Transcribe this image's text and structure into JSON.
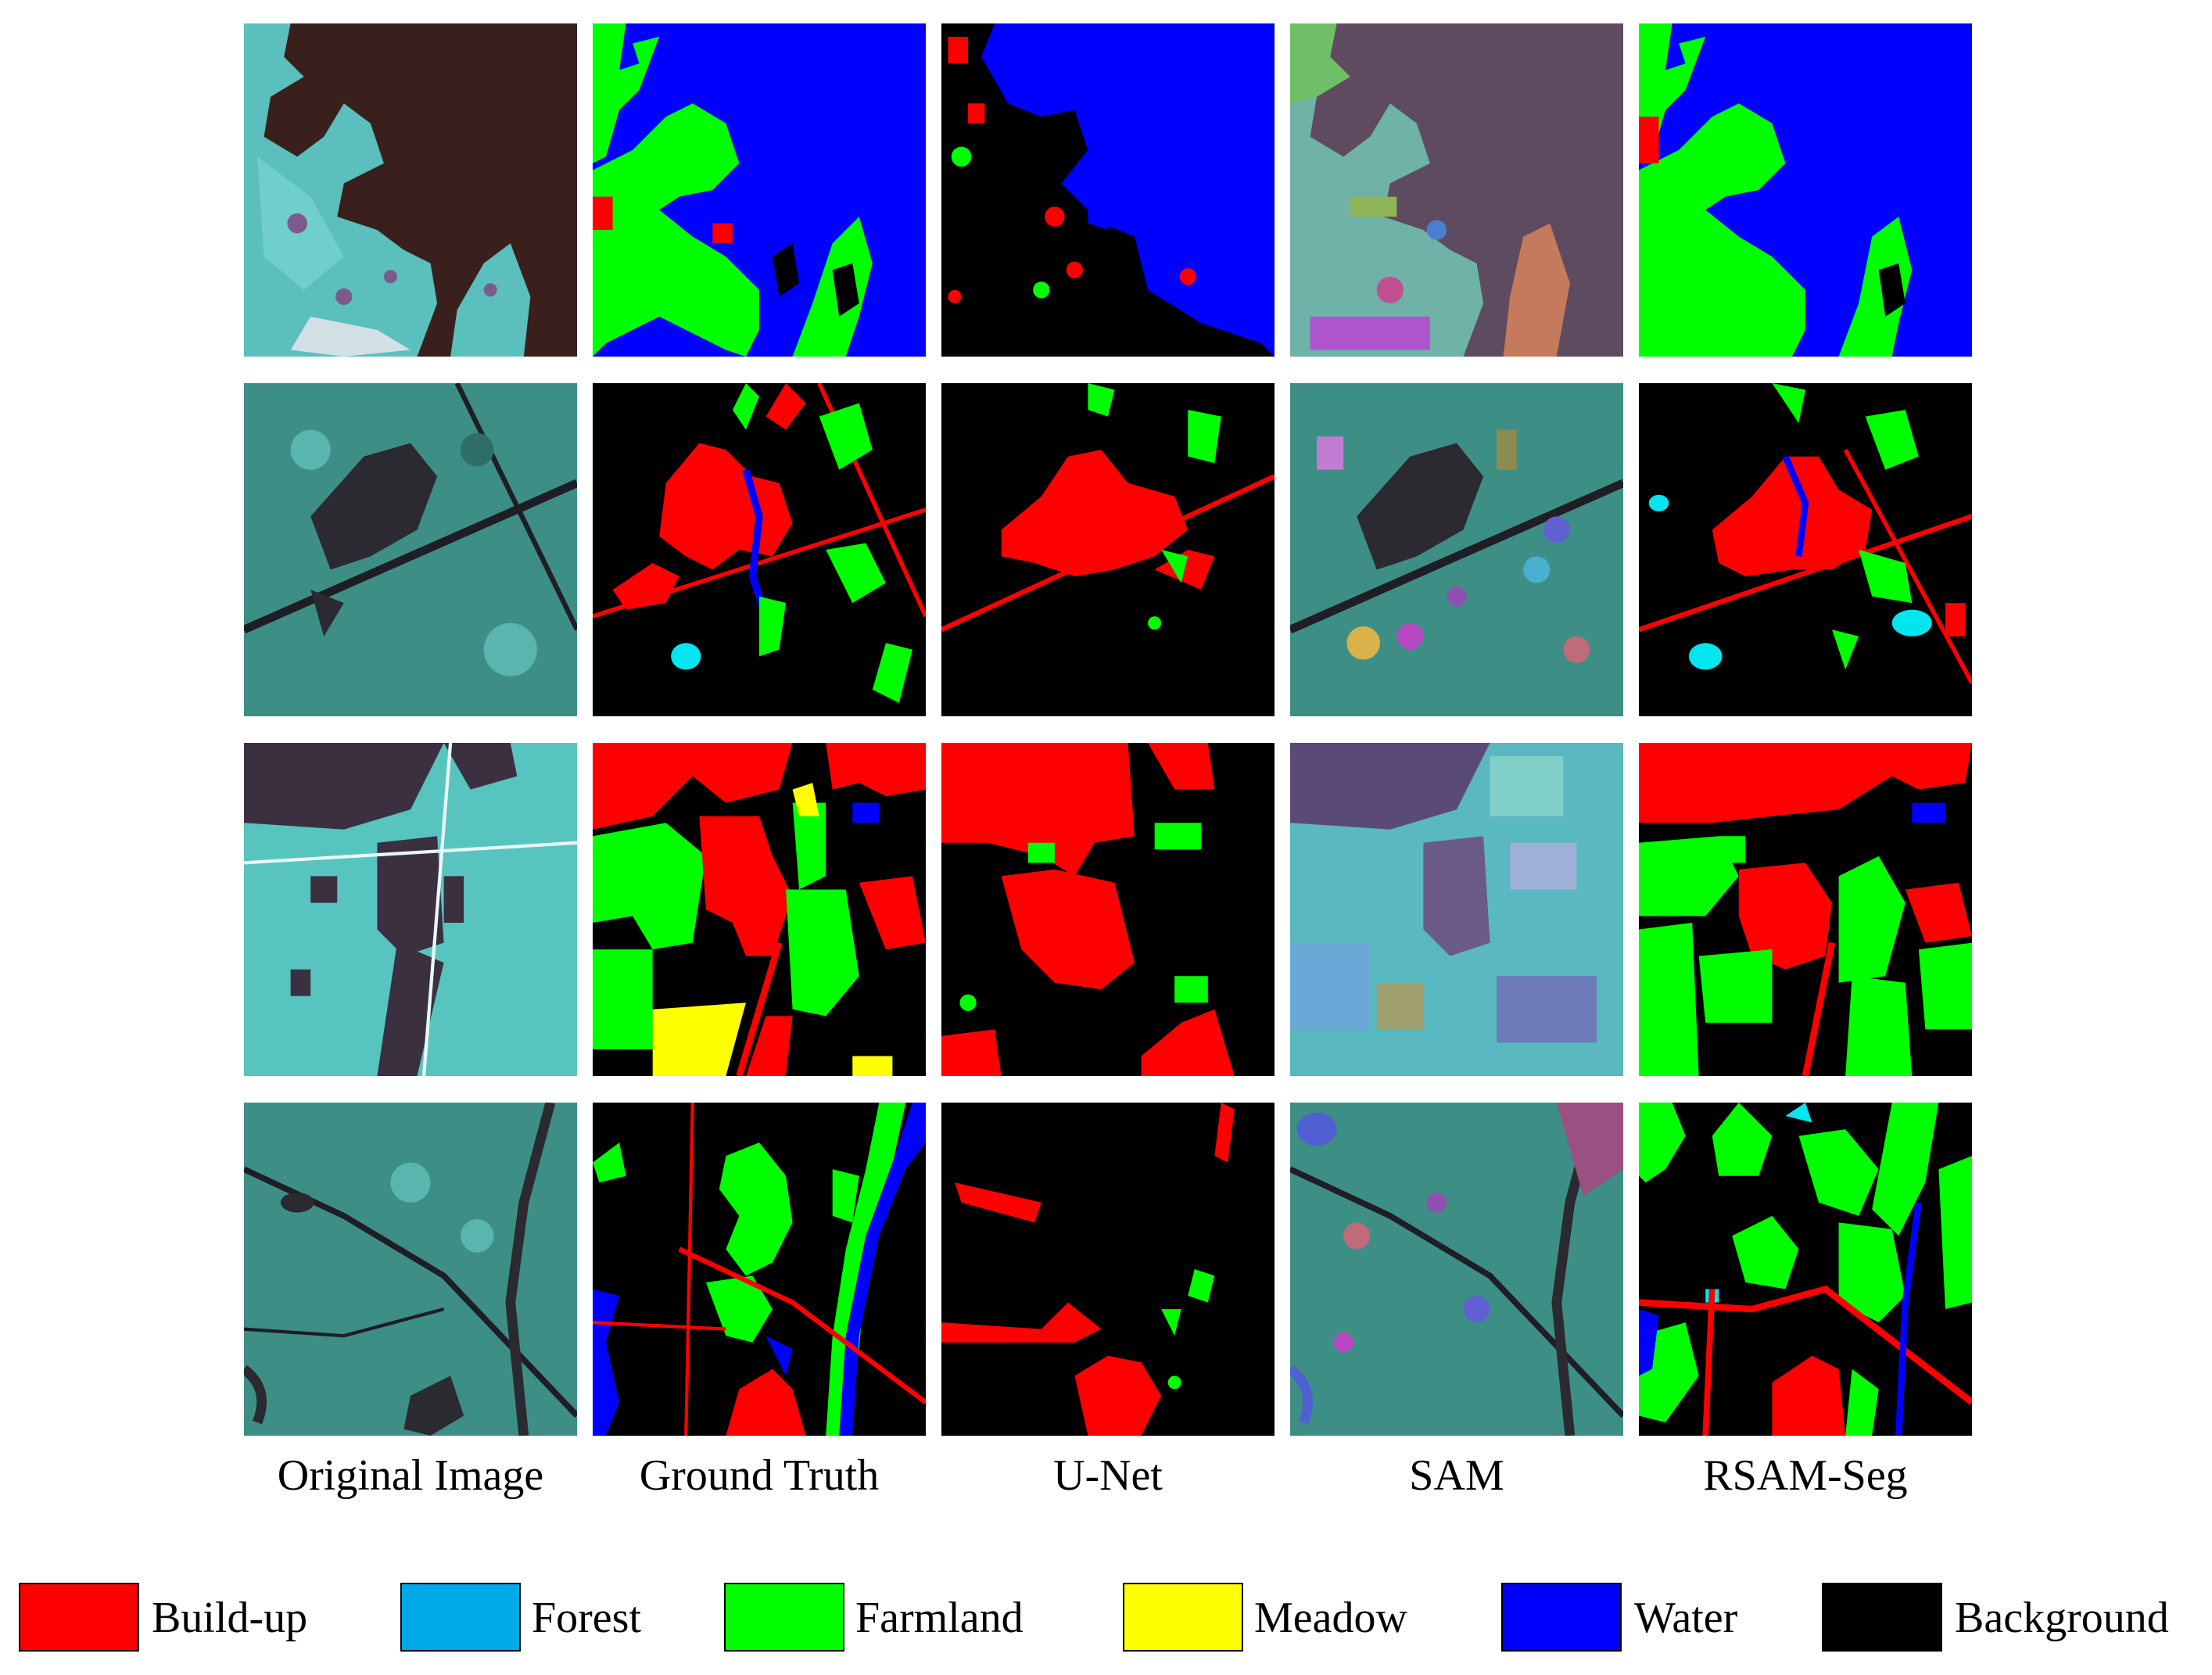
{
  "columns": [
    "Original Image",
    "Ground Truth",
    "U-Net",
    "SAM",
    "RSAM-Seg"
  ],
  "legend": [
    {
      "label": "Build-up",
      "color": "#ff0000"
    },
    {
      "label": "Forest",
      "color": "#00a8e8"
    },
    {
      "label": "Farmland",
      "color": "#00ff00"
    },
    {
      "label": "Meadow",
      "color": "#ffff00"
    },
    {
      "label": "Water",
      "color": "#0000ff"
    },
    {
      "label": "Background",
      "color": "#000000"
    }
  ],
  "palette": {
    "buildup": "#ff0000",
    "forest": "#00e5ee",
    "farmland": "#00ff00",
    "meadow": "#ffff00",
    "water": "#0000ff",
    "background": "#000000",
    "image_base": "#3a8f86",
    "image_light": "#58c4c0",
    "image_dark": "#2b2630",
    "sea_dark": "#3a201c",
    "sam_sea": "#5f4b5f"
  }
}
